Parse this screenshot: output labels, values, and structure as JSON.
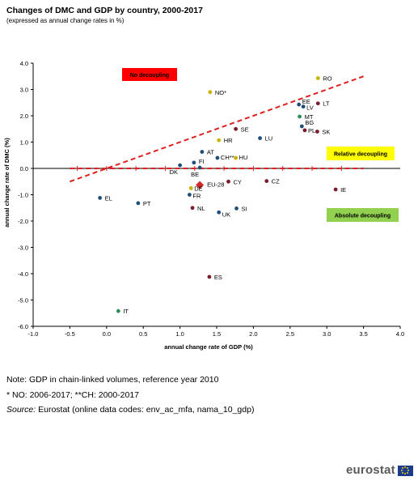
{
  "header": {
    "title": "Changes of DMC and GDP by country, 2000-2017",
    "subtitle": "(expressed as annual change rates in %)"
  },
  "notes": {
    "line1": "Note: GDP in chain-linked volumes, reference year 2010",
    "line2": "* NO: 2006-2017; **CH: 2000-2017",
    "source_label": "Source:",
    "source_text": " Eurostat (online data codes: env_ac_mfa, nama_10_gdp)"
  },
  "brand": {
    "logo_text": "eurostat",
    "flag_icon": "eu-flag-icon"
  },
  "chart_data": {
    "type": "scatter",
    "xlabel": "annual change rate of GDP (%)",
    "ylabel": "annual change rate of DMC (%)",
    "xlim": [
      -1.0,
      4.0
    ],
    "ylim": [
      -6.0,
      4.0
    ],
    "xticks": [
      -1.0,
      -0.5,
      0.0,
      0.5,
      1.0,
      1.5,
      2.0,
      2.5,
      3.0,
      3.5,
      4.0
    ],
    "yticks": [
      -6.0,
      -5.0,
      -4.0,
      -3.0,
      -2.0,
      -1.0,
      0.0,
      1.0,
      2.0,
      3.0,
      4.0
    ],
    "xtick_labels": [
      "-1.0",
      "-0.5",
      "0.0",
      "0.5",
      "1.0",
      "1.5",
      "2.0",
      "2.5",
      "3.0",
      "3.5",
      "4.0"
    ],
    "ytick_labels": [
      "-6.0",
      "-5.0",
      "-4.0",
      "-3.0",
      "-2.0",
      "-1.0",
      "0.0",
      "1.0",
      "2.0",
      "3.0",
      "4.0"
    ],
    "grid": false,
    "points": [
      {
        "label": "RO",
        "x": 2.88,
        "y": 3.43,
        "color": "#c8b400"
      },
      {
        "label": "NO*",
        "x": 1.41,
        "y": 2.9,
        "color": "#c8b400"
      },
      {
        "label": "EE",
        "x": 2.62,
        "y": 2.43,
        "color": "#1f4e79"
      },
      {
        "label": "LV",
        "x": 2.68,
        "y": 2.35,
        "color": "#1f4e79"
      },
      {
        "label": "LT",
        "x": 2.88,
        "y": 2.47,
        "color": "#7b1c2c"
      },
      {
        "label": "MT",
        "x": 2.63,
        "y": 1.97,
        "color": "#2e8b57"
      },
      {
        "label": "BG",
        "x": 2.66,
        "y": 1.6,
        "color": "#1f4e79"
      },
      {
        "label": "PL",
        "x": 2.7,
        "y": 1.45,
        "color": "#7b1c2c"
      },
      {
        "label": "SK",
        "x": 2.87,
        "y": 1.4,
        "color": "#7b1c2c"
      },
      {
        "label": "SE",
        "x": 1.76,
        "y": 1.5,
        "color": "#7b1c2c"
      },
      {
        "label": "LU",
        "x": 2.09,
        "y": 1.15,
        "color": "#1f4e79"
      },
      {
        "label": "HR",
        "x": 1.53,
        "y": 1.07,
        "color": "#c8b400"
      },
      {
        "label": "AT",
        "x": 1.3,
        "y": 0.63,
        "color": "#1f4e79"
      },
      {
        "label": "CH**",
        "x": 1.51,
        "y": 0.4,
        "color": "#1f4e79"
      },
      {
        "label": "HU",
        "x": 1.76,
        "y": 0.4,
        "color": "#c8b400"
      },
      {
        "label": "FI",
        "x": 1.19,
        "y": 0.22,
        "color": "#1f4e79"
      },
      {
        "label": "DK",
        "x": 1.0,
        "y": 0.12,
        "color": "#1f4e79"
      },
      {
        "label": "BE",
        "x": 1.27,
        "y": 0.03,
        "color": "#1f4e79"
      },
      {
        "label": "CY",
        "x": 1.66,
        "y": -0.5,
        "color": "#7b1c2c"
      },
      {
        "label": "CZ",
        "x": 2.18,
        "y": -0.48,
        "color": "#7b1c2c"
      },
      {
        "label": "EU-28",
        "x": 1.27,
        "y": -0.63,
        "color": "#d62728",
        "marker": "diamond"
      },
      {
        "label": "DE",
        "x": 1.15,
        "y": -0.75,
        "color": "#c8b400"
      },
      {
        "label": "FR",
        "x": 1.13,
        "y": -1.0,
        "color": "#1f4e79"
      },
      {
        "label": "IE",
        "x": 3.12,
        "y": -0.8,
        "color": "#7b1c2c"
      },
      {
        "label": "EL",
        "x": -0.09,
        "y": -1.12,
        "color": "#1f4e79"
      },
      {
        "label": "PT",
        "x": 0.43,
        "y": -1.32,
        "color": "#1f4e79"
      },
      {
        "label": "NL",
        "x": 1.17,
        "y": -1.5,
        "color": "#7b1c2c"
      },
      {
        "label": "SI",
        "x": 1.77,
        "y": -1.52,
        "color": "#1f4e79"
      },
      {
        "label": "UK",
        "x": 1.53,
        "y": -1.67,
        "color": "#1f4e79"
      },
      {
        "label": "ES",
        "x": 1.4,
        "y": -4.12,
        "color": "#7b1c2c"
      },
      {
        "label": "IT",
        "x": 0.16,
        "y": -5.42,
        "color": "#2e8b57"
      }
    ],
    "reference_lines": [
      {
        "name": "trend",
        "from": [
          -0.5,
          -0.5
        ],
        "to": [
          3.5,
          3.5
        ],
        "color": "#e02020",
        "style": "dashed"
      },
      {
        "name": "zero",
        "from": [
          -0.5,
          0.0
        ],
        "to": [
          3.5,
          0.0
        ],
        "color": "#e02020",
        "style": "dashed"
      }
    ],
    "annotations": [
      {
        "text": "No decoupling",
        "fill": "#ff0000",
        "text_color": "#000000"
      },
      {
        "text": "Relative decoupling",
        "fill": "#ffff00",
        "text_color": "#000000"
      },
      {
        "text": "Absolute decoupling",
        "fill": "#92d050",
        "text_color": "#000000"
      }
    ]
  }
}
